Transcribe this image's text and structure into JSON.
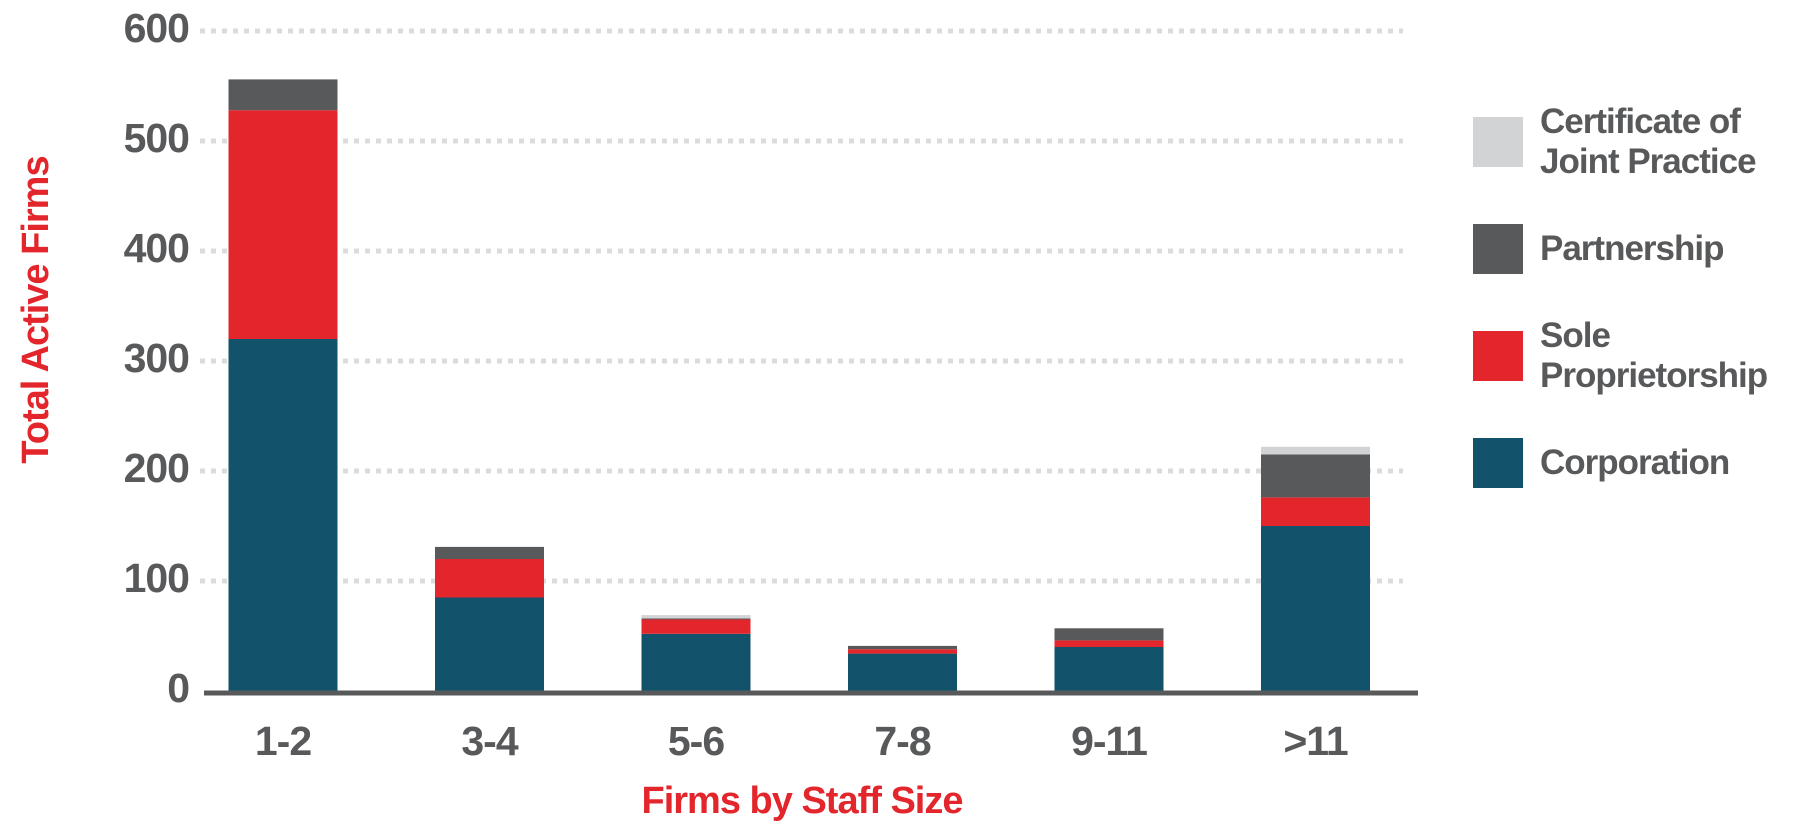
{
  "chart_data": {
    "type": "stacked_bar",
    "x_label": "Firms by Staff Size",
    "y_label": "Total Active Firms",
    "categories": [
      "1-2",
      "3-4",
      "5-6",
      "7-8",
      "9-11",
      ">11"
    ],
    "series": [
      {
        "name": "Corporation",
        "color": "#12526b",
        "values": [
          320,
          85,
          52,
          34,
          40,
          150
        ]
      },
      {
        "name": "Sole Proprietorship",
        "color": "#e3262c",
        "values": [
          208,
          35,
          13,
          4,
          6,
          26
        ]
      },
      {
        "name": "Partnership",
        "color": "#58595b",
        "values": [
          28,
          11,
          1,
          3,
          11,
          39
        ]
      },
      {
        "name": "Certificate of Joint Practice",
        "color": "#d1d3d4",
        "values": [
          0,
          0,
          3,
          0,
          0,
          7
        ]
      }
    ],
    "ylim": [
      0,
      600
    ],
    "yticks": [
      0,
      100,
      200,
      300,
      400,
      500,
      600
    ],
    "grid": true
  }
}
